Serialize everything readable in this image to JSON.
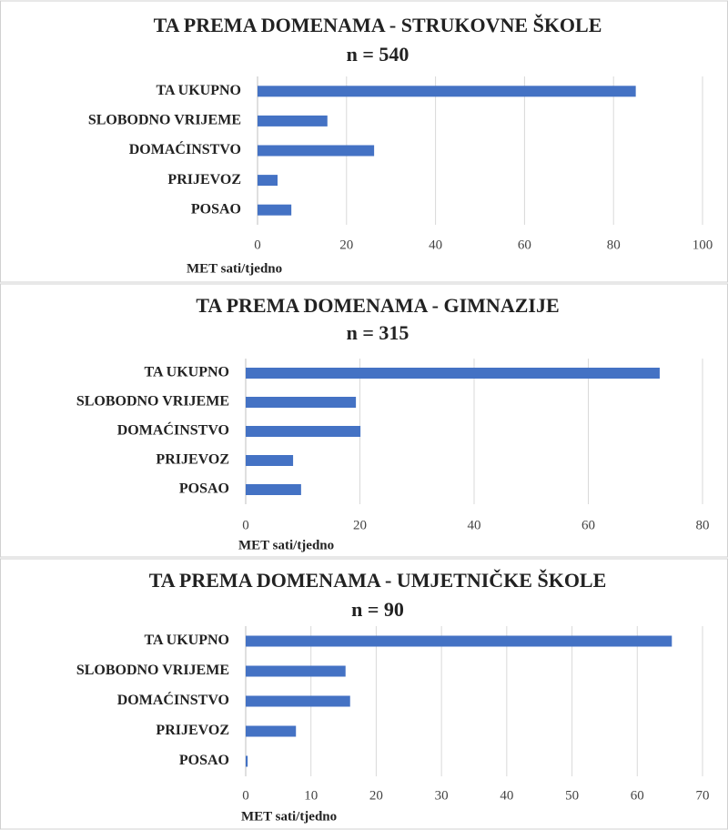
{
  "chart_data": [
    {
      "type": "bar",
      "orientation": "horizontal",
      "title": "TA PREMA DOMENAMA - STRUKOVNE ŠKOLE",
      "subtitle": "n = 540",
      "categories": [
        "TA UKUPNO",
        "SLOBODNO VRIJEME",
        "DOMAĆINSTVO",
        "PRIJEVOZ",
        "POSAO"
      ],
      "values": [
        85,
        15.7,
        26.2,
        4.5,
        7.6
      ],
      "color": "#4472c4",
      "xlim": [
        0,
        100
      ],
      "xticks": [
        0,
        20,
        40,
        60,
        80,
        100
      ],
      "xlabel": "MET sati/tjedno",
      "grid": true
    },
    {
      "type": "bar",
      "orientation": "horizontal",
      "title": "TA PREMA DOMENAMA - GIMNAZIJE",
      "subtitle": "n = 315",
      "categories": [
        "TA UKUPNO",
        "SLOBODNO VRIJEME",
        "DOMAĆINSTVO",
        "PRIJEVOZ",
        "POSAO"
      ],
      "values": [
        72.5,
        19.3,
        20.1,
        8.3,
        9.7
      ],
      "color": "#4472c4",
      "xlim": [
        0,
        80
      ],
      "xticks": [
        0,
        20,
        40,
        60,
        80
      ],
      "xlabel": "MET sati/tjedno",
      "grid": true
    },
    {
      "type": "bar",
      "orientation": "horizontal",
      "title": "TA PREMA DOMENAMA - UMJETNIČKE  ŠKOLE",
      "subtitle": "n = 90",
      "categories": [
        "TA UKUPNO",
        "SLOBODNO VRIJEME",
        "DOMAĆINSTVO",
        "PRIJEVOZ",
        "POSAO"
      ],
      "values": [
        65.3,
        15.3,
        16,
        7.7,
        0.3
      ],
      "color": "#4472c4",
      "xlim": [
        0,
        70
      ],
      "xticks": [
        0,
        10,
        20,
        30,
        40,
        50,
        60,
        70
      ],
      "xlabel": "MET sati/tjedno",
      "grid": true
    }
  ]
}
